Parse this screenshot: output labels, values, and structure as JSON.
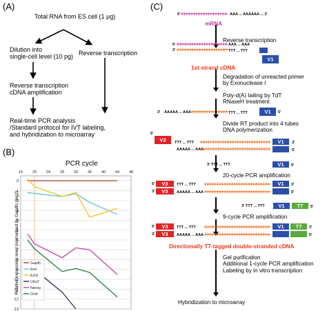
{
  "panelA": {
    "label": "(A)",
    "total_rna": "Total RNA from ES cell (1 µg)",
    "dilution": [
      "Dilution into",
      "single-cell level (10 pg)"
    ],
    "reverse_transcription": "Reverse transcription",
    "rt_cdna": [
      "Reverse transcription",
      "cDNA amplification"
    ],
    "final": [
      "Real-time PCR analysis",
      "/Standard protocol for IVT labeling,",
      "and hybridization to microarray"
    ]
  },
  "panelB": {
    "label": "(B)",
    "title": "PCR cycle",
    "x_ticks": [
      "16",
      "20",
      "24",
      "28",
      "32",
      "36",
      "40",
      "44",
      "48"
    ],
    "y_ticks": [
      "0",
      "-1",
      "-2",
      "-3",
      "-4",
      "-5",
      "-6",
      "-7",
      "-8",
      "-9",
      "-10",
      "-11",
      "-12",
      "-13"
    ],
    "ylabel": "Relative expression level (normalized by Gapdh) (log2)",
    "legend": [
      "Gapdh",
      "Eed",
      "Ezh2",
      "Utsz2",
      "Nanog",
      "Oct4"
    ]
  },
  "chart_data": {
    "type": "line",
    "title": "PCR cycle",
    "xlabel": "",
    "ylabel": "Relative expression level (normalized by Gapdh) (log2)",
    "xlim": [
      16,
      48
    ],
    "ylim": [
      -13,
      0.5
    ],
    "x": [
      18,
      20,
      28,
      32,
      36,
      44
    ],
    "series": [
      {
        "name": "Gapdh",
        "color": "#a0452e",
        "values": [
          0,
          0,
          0,
          0,
          0,
          0
        ]
      },
      {
        "name": "Eed",
        "color": "#5bc3da",
        "values": [
          -1.2,
          -1.3,
          -1.6,
          -1.3,
          -2.2,
          -3.4
        ]
      },
      {
        "name": "Ezh2",
        "color": "#f2c318",
        "values": [
          0.2,
          -0.6,
          -1.6,
          -1.2,
          -3.7,
          -2.8
        ]
      },
      {
        "name": "Utsz2",
        "color": "#1f2d6e",
        "values": [
          -8.2,
          -9.0,
          -11.3,
          -13.5,
          null,
          null
        ]
      },
      {
        "name": "Nanog",
        "color": "#c13fa3",
        "values": [
          -5.4,
          -6.4,
          -7.8,
          -6.8,
          -7.0,
          -9.5
        ]
      },
      {
        "name": "Oct4",
        "color": "#1f7a3a",
        "values": [
          -6.0,
          -6.9,
          -9.2,
          -8.9,
          -9.3,
          -11.8
        ]
      }
    ]
  },
  "panelC": {
    "label": "(C)",
    "mrna": "mRNA",
    "aaa_top": "AAA ... AAAAAA ... 3'",
    "five_prime": "5'",
    "three_prime": "3'",
    "step1": "Reverse transcription",
    "first_strand": "1st-strand cDNA",
    "step2": [
      "Degradation of unreacted primer",
      "by Exonuclease I"
    ],
    "step3": [
      "Poly-d(A) tailing by TdT",
      "RNaseH treatment"
    ],
    "polyA": "AAAAA ... AAA",
    "polyT": "TTT ... TTT",
    "step4": [
      "Divide RT product into 4 tubes",
      "DNA polymerization"
    ],
    "step5": "20-cycle PCR amplification",
    "step6": "9-cycle PCR amplification",
    "double_strand": "Directionally T7-tagged double-stranded cDNA",
    "step7": [
      "Gel purification",
      "Additional 1-cycle PCR amplification",
      "Labeling by in vitro transcription"
    ],
    "final": "Hybridization to microarray",
    "v1": "V1",
    "v3": "V3",
    "t7": "T7"
  }
}
